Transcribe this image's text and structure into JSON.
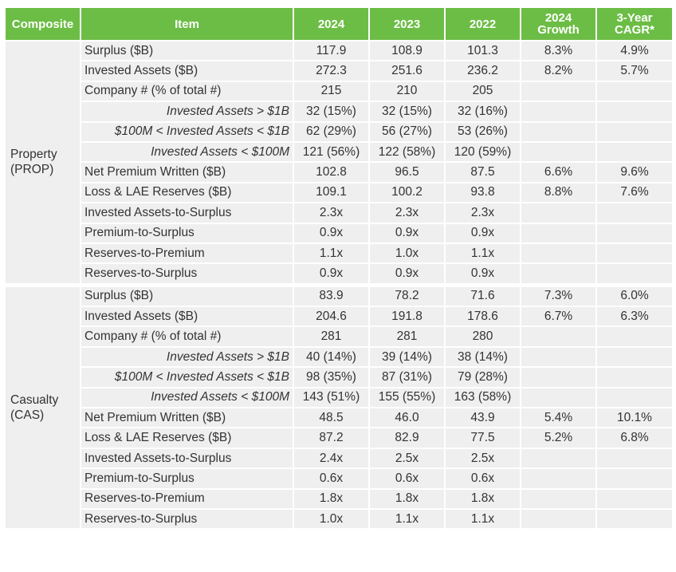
{
  "table": {
    "header": [
      "Composite",
      "Item",
      "2024",
      "2023",
      "2022",
      "2024 Growth",
      "3-Year CAGR*"
    ],
    "sections": [
      {
        "composite": "Property (PROP)",
        "rows": [
          [
            "Surplus ($B)",
            "117.9",
            "108.9",
            "101.3",
            "8.3%",
            "4.9%"
          ],
          [
            "Invested Assets ($B)",
            "272.3",
            "251.6",
            "236.2",
            "8.2%",
            "5.7%"
          ],
          [
            "Company # (% of total #)",
            "215",
            "210",
            "205"
          ],
          [
            "Invested Assets > $1B",
            "32 (15%)",
            "32 (15%)",
            "32 (16%)"
          ],
          [
            "$100M < Invested Assets < $1B",
            "62 (29%)",
            "56 (27%)",
            "53 (26%)"
          ],
          [
            "Invested Assets < $100M",
            "121 (56%)",
            "122 (58%)",
            "120 (59%)"
          ],
          [
            "Net Premium Written ($B)",
            "102.8",
            "96.5",
            "87.5",
            "6.6%",
            "9.6%"
          ],
          [
            "Loss & LAE Reserves ($B)",
            "109.1",
            "100.2",
            "93.8",
            "8.8%",
            "7.6%"
          ],
          [
            "Invested Assets-to-Surplus",
            "2.3x",
            "2.3x",
            "2.3x"
          ],
          [
            "Premium-to-Surplus",
            "0.9x",
            "0.9x",
            "0.9x"
          ],
          [
            "Reserves-to-Premium",
            "1.1x",
            "1.0x",
            "1.1x"
          ],
          [
            "Reserves-to-Surplus",
            "0.9x",
            "0.9x",
            "0.9x"
          ]
        ]
      },
      {
        "composite": "Casualty (CAS)",
        "rows": [
          [
            "Surplus ($B)",
            "83.9",
            "78.2",
            "71.6",
            "7.3%",
            "6.0%"
          ],
          [
            "Invested Assets ($B)",
            "204.6",
            "191.8",
            "178.6",
            "6.7%",
            "6.3%"
          ],
          [
            "Company # (% of total #)",
            "281",
            "281",
            "280"
          ],
          [
            "Invested Assets > $1B",
            "40 (14%)",
            "39 (14%)",
            "38 (14%)"
          ],
          [
            "$100M < Invested Assets < $1B",
            "98 (35%)",
            "87 (31%)",
            "79 (28%)"
          ],
          [
            "Invested Assets < $100M",
            "143 (51%)",
            "155 (55%)",
            "163 (58%)"
          ],
          [
            "Net Premium Written ($B)",
            "48.5",
            "46.0",
            "43.9",
            "5.4%",
            "10.1%"
          ],
          [
            "Loss & LAE Reserves ($B)",
            "87.2",
            "82.9",
            "77.5",
            "5.2%",
            "6.8%"
          ],
          [
            "Invested Assets-to-Surplus",
            "2.4x",
            "2.5x",
            "2.5x"
          ],
          [
            "Premium-to-Surplus",
            "0.6x",
            "0.6x",
            "0.6x"
          ],
          [
            "Reserves-to-Premium",
            "1.8x",
            "1.8x",
            "1.8x"
          ],
          [
            "Reserves-to-Surplus",
            "1.0x",
            "1.1x",
            "1.1x"
          ]
        ]
      }
    ]
  }
}
